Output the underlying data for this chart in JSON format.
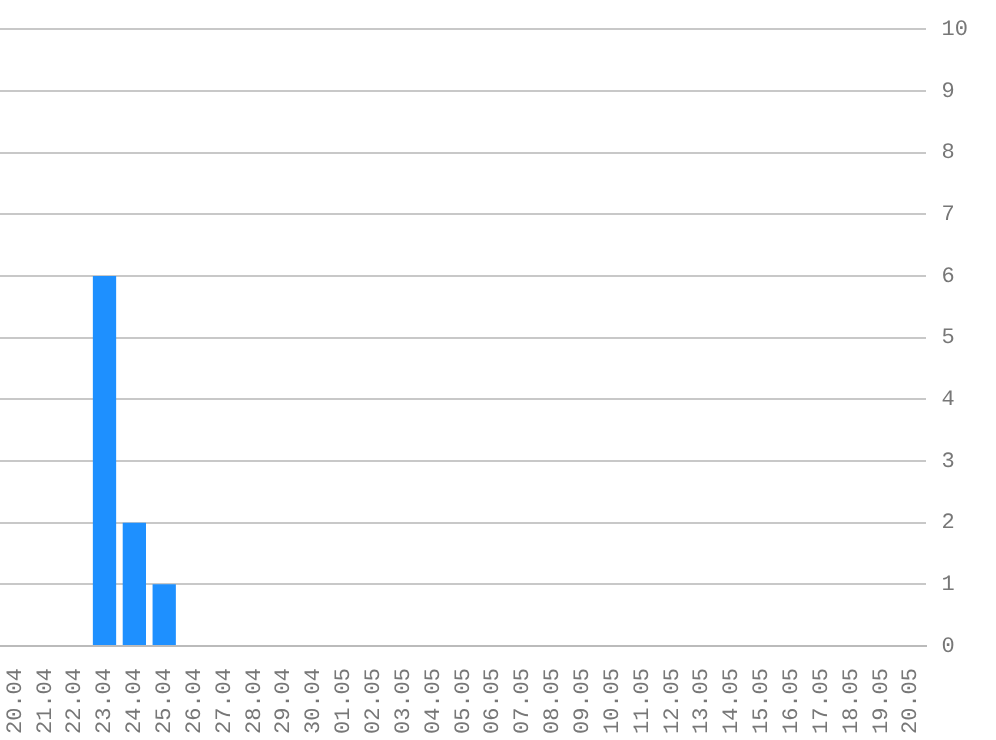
{
  "chart_data": {
    "type": "bar",
    "categories": [
      "20.04",
      "21.04",
      "22.04",
      "23.04",
      "24.04",
      "25.04",
      "26.04",
      "27.04",
      "28.04",
      "29.04",
      "30.04",
      "01.05",
      "02.05",
      "03.05",
      "04.05",
      "05.05",
      "06.05",
      "07.05",
      "08.05",
      "09.05",
      "10.05",
      "11.05",
      "12.05",
      "13.05",
      "14.05",
      "15.05",
      "16.05",
      "17.05",
      "18.05",
      "19.05",
      "20.05"
    ],
    "values": [
      0,
      0,
      0,
      6,
      2,
      1,
      0,
      0,
      0,
      0,
      0,
      0,
      0,
      0,
      0,
      0,
      0,
      0,
      0,
      0,
      0,
      0,
      0,
      0,
      0,
      0,
      0,
      0,
      0,
      0,
      0
    ],
    "color": "#1e90ff",
    "ylim": [
      0,
      10
    ],
    "yticks": [
      0,
      1,
      2,
      3,
      4,
      5,
      6,
      7,
      8,
      9,
      10
    ],
    "grid": "y",
    "legend": false
  }
}
